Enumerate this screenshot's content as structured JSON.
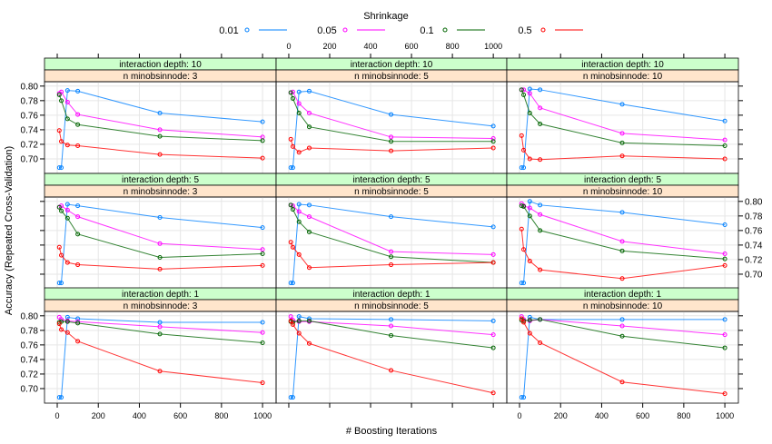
{
  "chart_data": {
    "type": "line",
    "legend_title": "Shrinkage",
    "legend_placement": "top",
    "xlabel": "# Boosting Iterations",
    "ylabel": "Accuracy (Repeated Cross-Validation)",
    "xlim": [
      -62,
      1066
    ],
    "ylim": [
      0.68,
      0.806
    ],
    "xticks": [
      0,
      200,
      400,
      600,
      800,
      1000
    ],
    "xtick_labels": [
      "0",
      "200",
      "400",
      "600",
      "800",
      "1000"
    ],
    "yticks": [
      0.7,
      0.72,
      0.74,
      0.76,
      0.78,
      0.8
    ],
    "ytick_labels": [
      "0.70",
      "0.72",
      "0.74",
      "0.76",
      "0.78",
      "0.80"
    ],
    "grid": true,
    "strip_colors": {
      "depth": "#ccffcc",
      "minobs": "#ffe5cc"
    },
    "x": [
      10,
      20,
      50,
      100,
      500,
      1000
    ],
    "series_meta": [
      {
        "name": "0.01",
        "color": "#0080ff"
      },
      {
        "name": "0.05",
        "color": "#ff00ff"
      },
      {
        "name": "0.1",
        "color": "#006400"
      },
      {
        "name": "0.5",
        "color": "#ff0000"
      }
    ],
    "panels": [
      {
        "depth_label": "interaction depth: 10",
        "minobs_label": "n minobsinnode:  3",
        "series": [
          [
            0.688,
            0.688,
            0.794,
            0.793,
            0.763,
            0.751
          ],
          [
            0.79,
            0.792,
            0.778,
            0.761,
            0.74,
            0.73
          ],
          [
            0.788,
            0.78,
            0.755,
            0.747,
            0.731,
            0.725
          ],
          [
            0.739,
            0.724,
            0.719,
            0.718,
            0.706,
            0.701
          ]
        ]
      },
      {
        "depth_label": "interaction depth: 10",
        "minobs_label": "n minobsinnode:  5",
        "series": [
          [
            0.688,
            0.688,
            0.792,
            0.793,
            0.761,
            0.745
          ],
          [
            0.791,
            0.792,
            0.776,
            0.763,
            0.73,
            0.728
          ],
          [
            0.791,
            0.783,
            0.763,
            0.744,
            0.724,
            0.724
          ],
          [
            0.727,
            0.717,
            0.709,
            0.715,
            0.711,
            0.715
          ]
        ]
      },
      {
        "depth_label": "interaction depth: 10",
        "minobs_label": "n minobsinnode: 10",
        "series": [
          [
            0.688,
            0.688,
            0.796,
            0.795,
            0.775,
            0.752
          ],
          [
            0.795,
            0.795,
            0.79,
            0.77,
            0.735,
            0.726
          ],
          [
            0.795,
            0.788,
            0.763,
            0.748,
            0.722,
            0.718
          ],
          [
            0.732,
            0.712,
            0.7,
            0.699,
            0.704,
            0.7
          ]
        ]
      },
      {
        "depth_label": "interaction depth:  5",
        "minobs_label": "n minobsinnode:  3",
        "series": [
          [
            0.688,
            0.688,
            0.796,
            0.794,
            0.778,
            0.764
          ],
          [
            0.792,
            0.794,
            0.788,
            0.779,
            0.742,
            0.734
          ],
          [
            0.792,
            0.787,
            0.777,
            0.755,
            0.723,
            0.728
          ],
          [
            0.737,
            0.726,
            0.716,
            0.713,
            0.707,
            0.712
          ]
        ]
      },
      {
        "depth_label": "interaction depth:  5",
        "minobs_label": "n minobsinnode:  5",
        "series": [
          [
            0.688,
            0.688,
            0.796,
            0.795,
            0.779,
            0.765
          ],
          [
            0.795,
            0.794,
            0.786,
            0.779,
            0.731,
            0.727
          ],
          [
            0.795,
            0.789,
            0.772,
            0.758,
            0.724,
            0.716
          ],
          [
            0.744,
            0.737,
            0.727,
            0.709,
            0.713,
            0.716
          ]
        ]
      },
      {
        "depth_label": "interaction depth:  5",
        "minobs_label": "n minobsinnode: 10",
        "series": [
          [
            0.688,
            0.688,
            0.8,
            0.795,
            0.785,
            0.768
          ],
          [
            0.797,
            0.794,
            0.791,
            0.782,
            0.745,
            0.728
          ],
          [
            0.794,
            0.793,
            0.78,
            0.76,
            0.732,
            0.721
          ],
          [
            0.762,
            0.734,
            0.718,
            0.706,
            0.694,
            0.712
          ]
        ]
      },
      {
        "depth_label": "interaction depth:  1",
        "minobs_label": "n minobsinnode:  3",
        "series": [
          [
            0.688,
            0.688,
            0.798,
            0.796,
            0.791,
            0.791
          ],
          [
            0.798,
            0.795,
            0.793,
            0.792,
            0.785,
            0.777
          ],
          [
            0.791,
            0.792,
            0.792,
            0.79,
            0.775,
            0.763
          ],
          [
            0.789,
            0.781,
            0.777,
            0.765,
            0.724,
            0.708
          ]
        ]
      },
      {
        "depth_label": "interaction depth:  1",
        "minobs_label": "n minobsinnode:  5",
        "series": [
          [
            0.688,
            0.688,
            0.799,
            0.796,
            0.795,
            0.793
          ],
          [
            0.799,
            0.794,
            0.792,
            0.792,
            0.786,
            0.774
          ],
          [
            0.792,
            0.791,
            0.793,
            0.793,
            0.773,
            0.756
          ],
          [
            0.793,
            0.788,
            0.776,
            0.762,
            0.725,
            0.694
          ]
        ]
      },
      {
        "depth_label": "interaction depth:  1",
        "minobs_label": "n minobsinnode: 10",
        "series": [
          [
            0.688,
            0.688,
            0.798,
            0.795,
            0.795,
            0.795
          ],
          [
            0.799,
            0.795,
            0.793,
            0.795,
            0.786,
            0.774
          ],
          [
            0.794,
            0.793,
            0.794,
            0.795,
            0.772,
            0.756
          ],
          [
            0.796,
            0.791,
            0.776,
            0.763,
            0.709,
            0.693
          ]
        ]
      }
    ]
  }
}
